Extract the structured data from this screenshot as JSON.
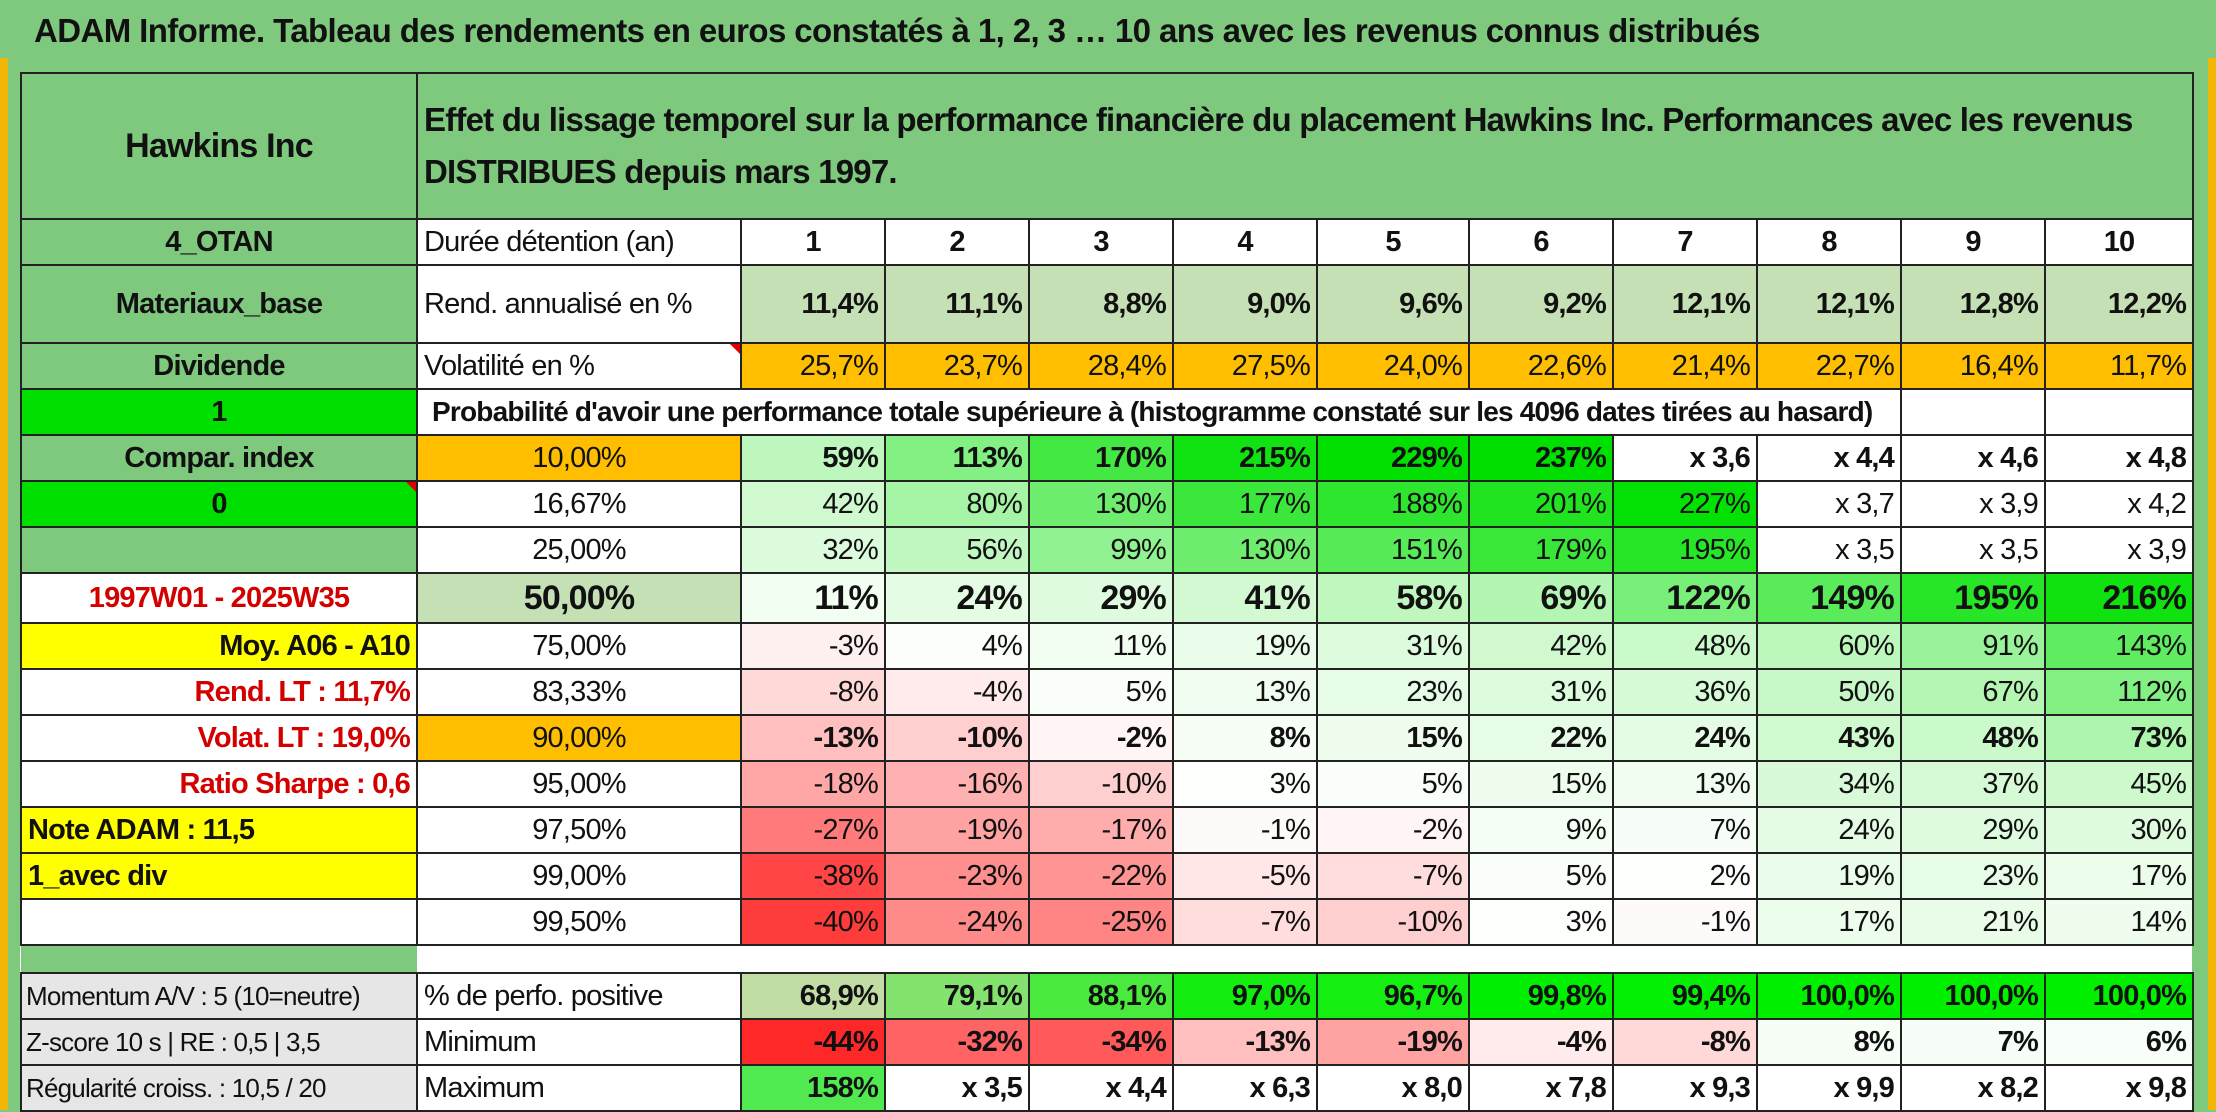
{
  "title": "ADAM Informe. Tableau des rendements en euros constatés à 1, 2, 3 … 10 ans avec les revenus connus distribués",
  "header": {
    "company": "Hawkins Inc",
    "description": "Effet du lissage temporel sur la performance financière du placement Hawkins Inc. Performances avec les revenus DISTRIBUES depuis mars 1997."
  },
  "side": {
    "code": "4_OTAN",
    "sector": "Materiaux_base",
    "dividend": "Dividende",
    "one": "1",
    "compar": "Compar. index",
    "zero": "0",
    "period": "1997W01 - 2025W35",
    "moy": "Moy. A06 - A10",
    "rend_lt": "Rend. LT :   11,7%",
    "volat_lt": "Volat. LT :   19,0%",
    "sharpe": "Ratio Sharpe :    0,6",
    "note": "Note ADAM : 11,5",
    "avec_div": "1_avec div",
    "momentum": "Momentum A/V : 5 (10=neutre)",
    "zscore": "Z-score 10 s | RE : 0,5 | 3,5",
    "regularite": "Régularité croiss. : 10,5 / 20"
  },
  "labels": {
    "duree": "Durée détention (an)",
    "rend": "Rend. annualisé en %",
    "volat": "Volatilité en %",
    "proba": "Probabilité d'avoir une performance totale supérieure à (histogramme constaté sur les 4096 dates tirées au hasard)",
    "pos": "% de perfo. positive",
    "min": "Minimum",
    "max": "Maximum"
  },
  "years": [
    "1",
    "2",
    "3",
    "4",
    "5",
    "6",
    "7",
    "8",
    "9",
    "10"
  ],
  "rend": [
    "11,4%",
    "11,1%",
    "8,8%",
    "9,0%",
    "9,6%",
    "9,2%",
    "12,1%",
    "12,1%",
    "12,8%",
    "12,2%"
  ],
  "volat": [
    "25,7%",
    "23,7%",
    "28,4%",
    "27,5%",
    "24,0%",
    "22,6%",
    "21,4%",
    "22,7%",
    "16,4%",
    "11,7%"
  ],
  "prob_rows": [
    {
      "pct": "10,00%",
      "vals": [
        "59%",
        "113%",
        "170%",
        "215%",
        "229%",
        "237%",
        "x 3,6",
        "x 4,4",
        "x 4,6",
        "x 4,8"
      ]
    },
    {
      "pct": "16,67%",
      "vals": [
        "42%",
        "80%",
        "130%",
        "177%",
        "188%",
        "201%",
        "227%",
        "x 3,7",
        "x 3,9",
        "x 4,2"
      ]
    },
    {
      "pct": "25,00%",
      "vals": [
        "32%",
        "56%",
        "99%",
        "130%",
        "151%",
        "179%",
        "195%",
        "x 3,5",
        "x 3,5",
        "x 3,9"
      ]
    },
    {
      "pct": "50,00%",
      "vals": [
        "11%",
        "24%",
        "29%",
        "41%",
        "58%",
        "69%",
        "122%",
        "149%",
        "195%",
        "216%"
      ]
    },
    {
      "pct": "75,00%",
      "vals": [
        "-3%",
        "4%",
        "11%",
        "19%",
        "31%",
        "42%",
        "48%",
        "60%",
        "91%",
        "143%"
      ]
    },
    {
      "pct": "83,33%",
      "vals": [
        "-8%",
        "-4%",
        "5%",
        "13%",
        "23%",
        "31%",
        "36%",
        "50%",
        "67%",
        "112%"
      ]
    },
    {
      "pct": "90,00%",
      "vals": [
        "-13%",
        "-10%",
        "-2%",
        "8%",
        "15%",
        "22%",
        "24%",
        "43%",
        "48%",
        "73%"
      ]
    },
    {
      "pct": "95,00%",
      "vals": [
        "-18%",
        "-16%",
        "-10%",
        "3%",
        "5%",
        "15%",
        "13%",
        "34%",
        "37%",
        "45%"
      ]
    },
    {
      "pct": "97,50%",
      "vals": [
        "-27%",
        "-19%",
        "-17%",
        "-1%",
        "-2%",
        "9%",
        "7%",
        "24%",
        "29%",
        "30%"
      ]
    },
    {
      "pct": "99,00%",
      "vals": [
        "-38%",
        "-23%",
        "-22%",
        "-5%",
        "-7%",
        "5%",
        "2%",
        "19%",
        "23%",
        "17%"
      ]
    },
    {
      "pct": "99,50%",
      "vals": [
        "-40%",
        "-24%",
        "-25%",
        "-7%",
        "-10%",
        "3%",
        "-1%",
        "17%",
        "21%",
        "14%"
      ]
    }
  ],
  "positive": [
    "68,9%",
    "79,1%",
    "88,1%",
    "97,0%",
    "96,7%",
    "99,8%",
    "99,4%",
    "100,0%",
    "100,0%",
    "100,0%"
  ],
  "minimum": [
    "-44%",
    "-32%",
    "-34%",
    "-13%",
    "-19%",
    "-4%",
    "-8%",
    "8%",
    "7%",
    "6%"
  ],
  "maximum": [
    "158%",
    "x 3,5",
    "x 4,4",
    "x 6,3",
    "x 8,0",
    "x 7,8",
    "x 9,3",
    "x 9,9",
    "x 8,2",
    "x 9,8"
  ],
  "colors": {
    "header_green": "#7fc97f",
    "light_green": "#c5e0b4",
    "orange": "#ffbf00",
    "bright_green": "#00e000",
    "yellow": "#ffff00",
    "red_text": "#d40000"
  }
}
